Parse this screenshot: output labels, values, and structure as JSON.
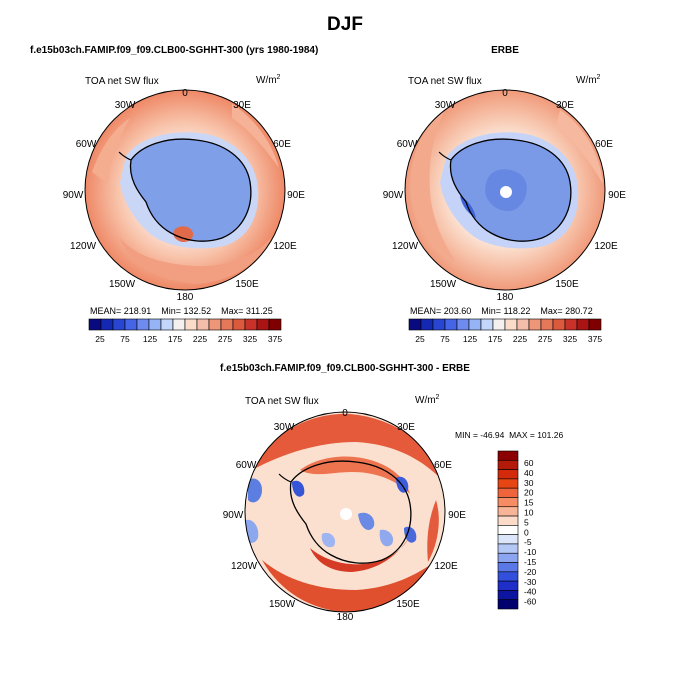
{
  "page_title": "DJF",
  "panels": [
    {
      "title": "f.e15b03ch.FAMIP.f09_f09.CLB00-SGHHT-300 (yrs 1980-1984)",
      "variable": "TOA net SW flux",
      "units": "W/m",
      "units_exp": "2",
      "stats": "MEAN= 218.91    Min= 132.52    Max= 311.25"
    },
    {
      "title": "ERBE",
      "variable": "TOA net SW flux",
      "units": "W/m",
      "units_exp": "2",
      "stats": "MEAN= 203.60    Min= 118.22    Max= 280.72"
    },
    {
      "title": "f.e15b03ch.FAMIP.f09_f09.CLB00-SGHHT-300 - ERBE",
      "variable": "TOA net SW flux",
      "units": "W/m",
      "units_exp": "2",
      "stats": "MIN = -46.94  MAX = 101.26"
    }
  ],
  "longitude_labels": [
    "0",
    "30E",
    "60E",
    "90E",
    "120E",
    "150E",
    "180",
    "150W",
    "120W",
    "90W",
    "60W",
    "30W"
  ],
  "abs_colorbar": {
    "colors": [
      "#0a0a80",
      "#1428b4",
      "#2846d2",
      "#4664e6",
      "#6e8cf0",
      "#96b4f5",
      "#c3d7fa",
      "#f5f0f0",
      "#fadcc8",
      "#f5beaa",
      "#f09678",
      "#e6785a",
      "#dc5a3c",
      "#c83228",
      "#aa1414",
      "#800000"
    ],
    "labels": [
      "25",
      "75",
      "125",
      "175",
      "225",
      "275",
      "325",
      "375"
    ]
  },
  "diff_colorbar": {
    "colors": [
      "#8b0000",
      "#b41a0a",
      "#d22a0a",
      "#e64614",
      "#f0643c",
      "#f58c64",
      "#f8b496",
      "#fcdcc8",
      "#ffffff",
      "#dce6fa",
      "#b4c8f5",
      "#8ca5f0",
      "#5a78e6",
      "#3250dc",
      "#1e2ec8",
      "#0c14a0",
      "#00006e"
    ],
    "labels": [
      "60",
      "40",
      "30",
      "20",
      "15",
      "10",
      "5",
      "0",
      "-5",
      "-10",
      "-15",
      "-20",
      "-30",
      "-40",
      "-60"
    ]
  },
  "colors": {
    "ocean_warm": "#f4a588",
    "ocean_mid": "#f9cbb4",
    "ice_zone": "#fce6dc",
    "antarctica": "#7f9fe8",
    "diff_red": "#dd4a2e",
    "diff_blue": "#5b7ee0"
  }
}
